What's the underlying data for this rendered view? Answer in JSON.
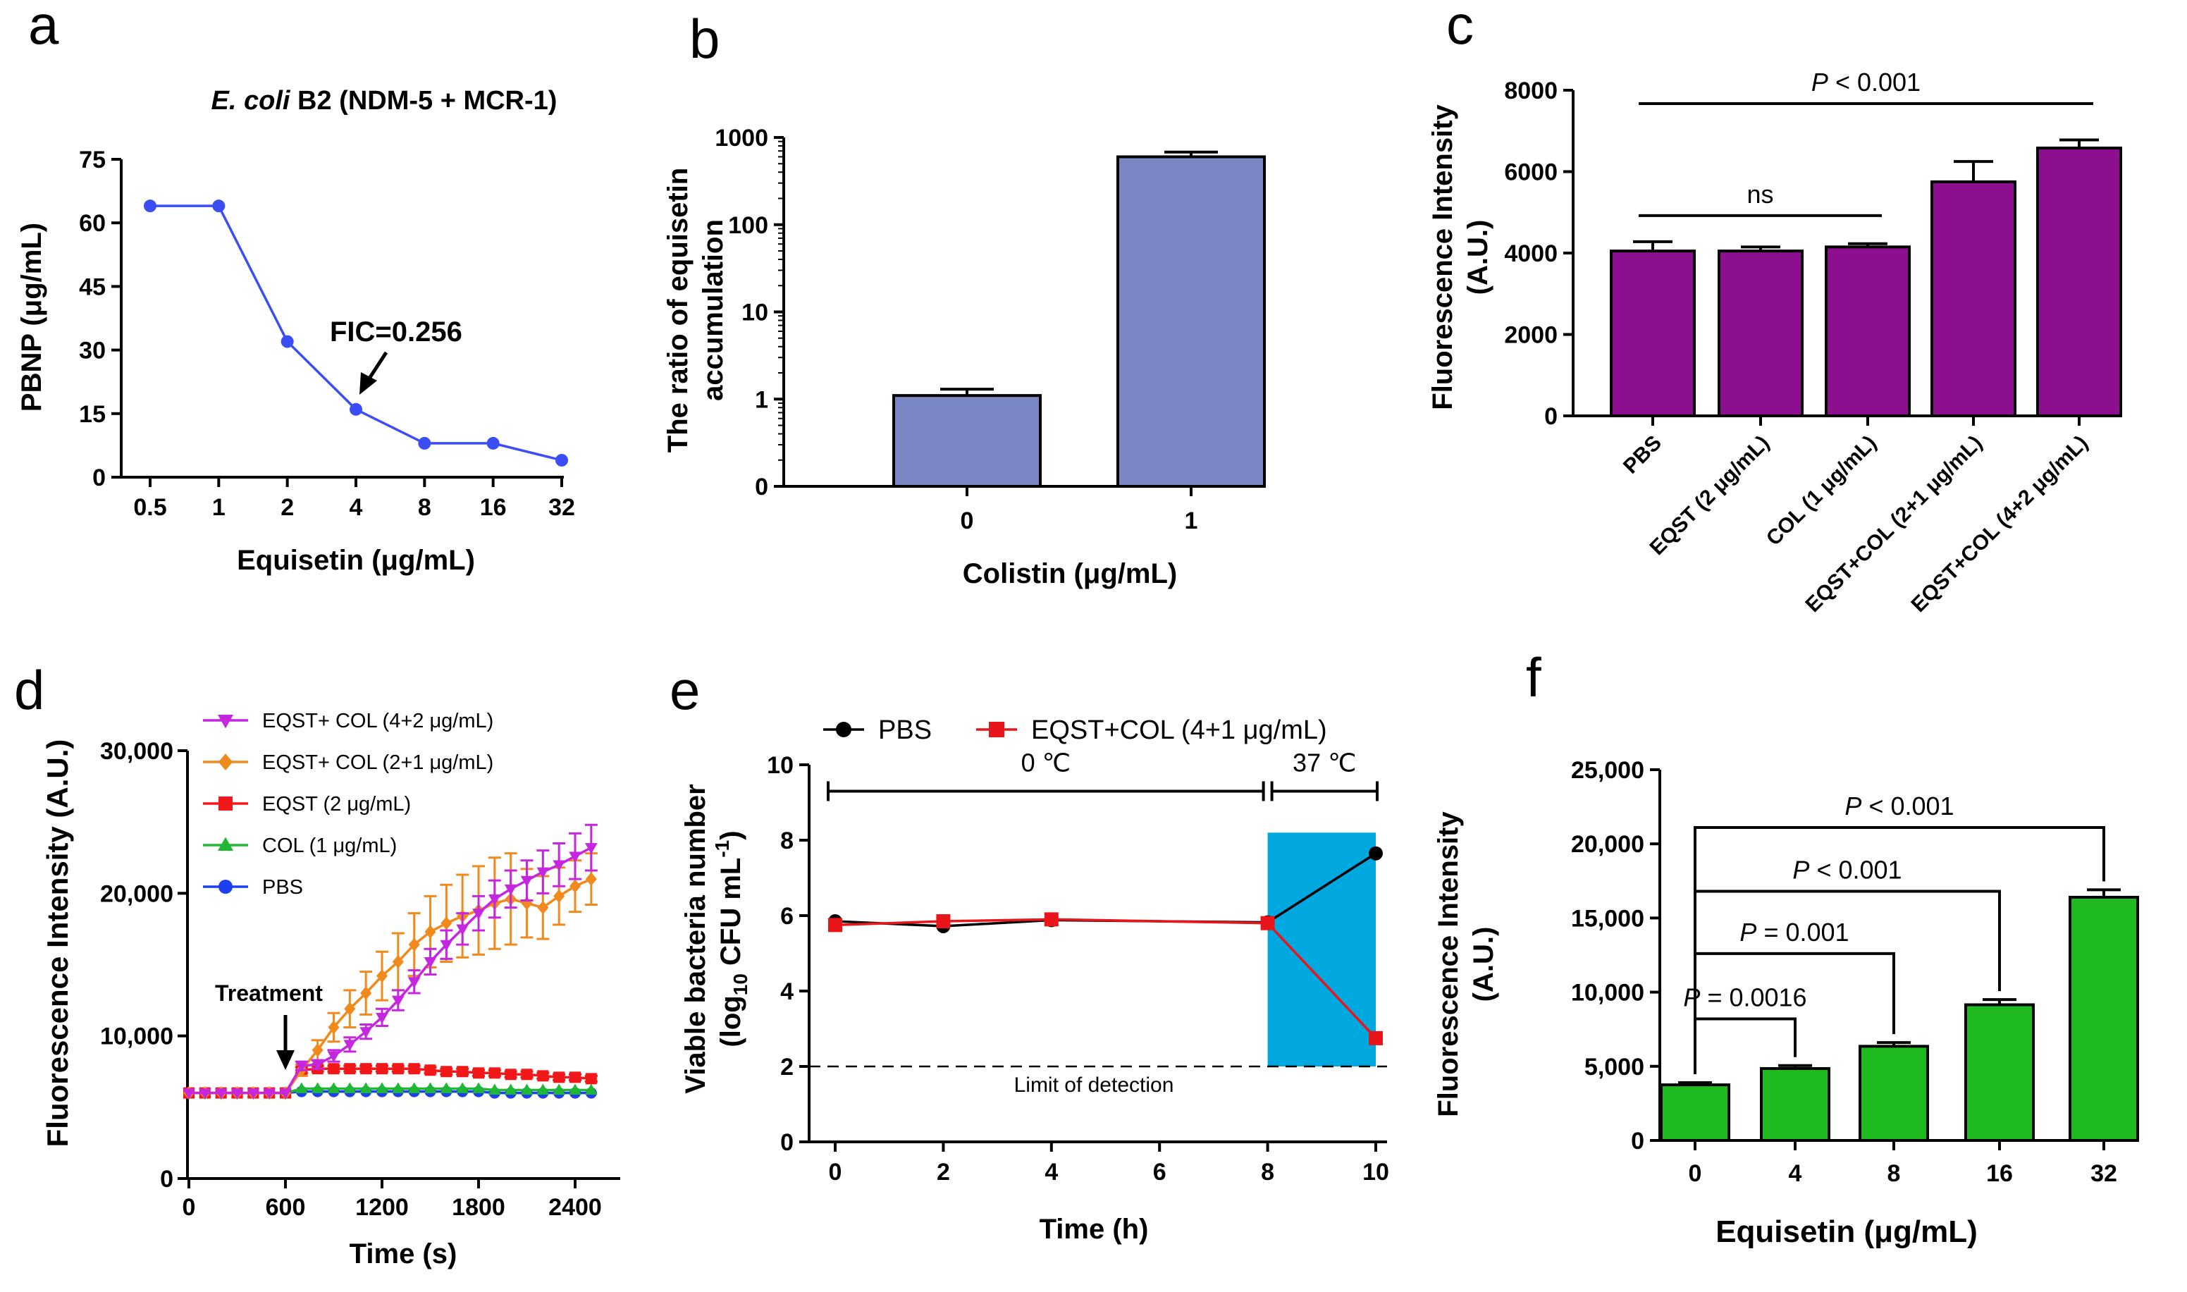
{
  "figure": {
    "panels": [
      "a",
      "b",
      "c",
      "d",
      "e",
      "f"
    ]
  },
  "chart_data": [
    {
      "id": "a",
      "type": "line",
      "title_italic": "E. coli",
      "title_rest": " B2 (NDM-5 + MCR-1)",
      "xlabel": "Equisetin (μg/mL)",
      "ylabel": "PBNP (μg/mL)",
      "categories": [
        "0.5",
        "1",
        "2",
        "4",
        "8",
        "16",
        "32"
      ],
      "values": [
        64,
        64,
        32,
        16,
        8,
        8,
        4
      ],
      "ylim": [
        0,
        75
      ],
      "yticks": [
        0,
        15,
        30,
        45,
        60,
        75
      ],
      "ytick_labels": [
        "0",
        "15",
        "30",
        "45",
        "60",
        "75"
      ],
      "annotation": "FIC=0.256",
      "annotation_target_index": 3,
      "color": "#3b4ef6"
    },
    {
      "id": "b",
      "type": "bar",
      "yscale": "log",
      "xlabel": "Colistin (μg/mL)",
      "ylabel_line1": "The ratio of equisetin",
      "ylabel_line2": "accumulation",
      "categories": [
        "0",
        "1"
      ],
      "values": [
        1.1,
        600
      ],
      "errors": [
        0.2,
        80
      ],
      "ylim": [
        0.1,
        1000
      ],
      "yticks": [
        0.1,
        1,
        10,
        100,
        1000
      ],
      "ytick_labels": [
        "0",
        "1",
        "10",
        "100",
        "1000"
      ],
      "color": "#7b86c4"
    },
    {
      "id": "c",
      "type": "bar",
      "ylabel_line1": "Fluorescence Intensity",
      "ylabel_line2": "(A.U.)",
      "categories": [
        "PBS",
        "EQST (2 μg/mL)",
        "COL (1 μg/mL)",
        "EQST+COL (2+1 μg/mL)",
        "EQST+COL (4+2 μg/mL)"
      ],
      "values": [
        4050,
        4050,
        4150,
        5750,
        6580
      ],
      "errors": [
        230,
        100,
        80,
        500,
        200
      ],
      "ylim": [
        0,
        8000
      ],
      "yticks": [
        0,
        2000,
        4000,
        6000,
        8000
      ],
      "ytick_labels": [
        "0",
        "2000",
        "4000",
        "6000",
        "8000"
      ],
      "brackets": [
        {
          "from": 0,
          "to": 2,
          "y": 4920,
          "label_italic": "",
          "label_rest": "ns"
        },
        {
          "from": 0,
          "to": 4,
          "y": 7670,
          "label_italic": "P",
          "label_rest": " < 0.001"
        }
      ],
      "color": "#8b0f8f"
    },
    {
      "id": "d",
      "type": "line",
      "xlabel": "Time (s)",
      "ylabel": "Fluorescence Intensity (A.U.)",
      "xlim": [
        0,
        2600
      ],
      "xticks": [
        0,
        600,
        1200,
        1800,
        2400
      ],
      "xtick_labels": [
        "0",
        "600",
        "1200",
        "1800",
        "2400"
      ],
      "ylim": [
        0,
        30000
      ],
      "yticks": [
        0,
        10000,
        20000,
        30000
      ],
      "ytick_labels": [
        "0",
        "10,000",
        "20,000",
        "30,000"
      ],
      "x": [
        0,
        100,
        200,
        300,
        400,
        500,
        600,
        700,
        800,
        900,
        1000,
        1100,
        1200,
        1300,
        1400,
        1500,
        1600,
        1700,
        1800,
        1900,
        2000,
        2100,
        2200,
        2300,
        2400,
        2500
      ],
      "series": [
        {
          "name": "EQST+ COL (4+2 μg/mL)",
          "color": "#c526e0",
          "marker": "tri-down",
          "values": [
            6000,
            6000,
            6000,
            6000,
            6000,
            6000,
            6000,
            7900,
            8000,
            8600,
            9400,
            10300,
            11300,
            12500,
            13800,
            15200,
            16400,
            17500,
            18600,
            19600,
            20300,
            20900,
            21500,
            22000,
            22600,
            23200
          ],
          "errors": [
            0,
            0,
            0,
            0,
            0,
            0,
            0,
            300,
            300,
            400,
            500,
            500,
            600,
            700,
            800,
            900,
            1000,
            1100,
            1200,
            1300,
            1300,
            1400,
            1500,
            1500,
            1600,
            1600
          ]
        },
        {
          "name": "EQST+ COL (2+1 μg/mL)",
          "color": "#f08a1c",
          "marker": "diamond",
          "values": [
            6000,
            6000,
            6000,
            6000,
            6000,
            6000,
            6000,
            7600,
            9000,
            10600,
            11900,
            13000,
            14200,
            15200,
            16400,
            17300,
            17900,
            18400,
            18800,
            19300,
            19600,
            19300,
            19000,
            19800,
            20500,
            21000
          ],
          "errors": [
            0,
            0,
            0,
            0,
            0,
            0,
            0,
            400,
            700,
            1000,
            1300,
            1500,
            1700,
            2000,
            2200,
            2500,
            2700,
            2900,
            3100,
            3200,
            3200,
            2400,
            2200,
            2000,
            1800,
            1800
          ]
        },
        {
          "name": "EQST (2 μg/mL)",
          "color": "#f01818",
          "marker": "square",
          "values": [
            6000,
            6000,
            6000,
            6000,
            6000,
            6000,
            6000,
            7600,
            7700,
            7700,
            7700,
            7700,
            7700,
            7700,
            7700,
            7600,
            7500,
            7500,
            7400,
            7400,
            7300,
            7300,
            7200,
            7100,
            7100,
            7000
          ],
          "errors": [
            0,
            0,
            0,
            0,
            0,
            0,
            0,
            200,
            200,
            200,
            200,
            200,
            200,
            200,
            200,
            200,
            200,
            200,
            200,
            200,
            200,
            200,
            200,
            200,
            200,
            200
          ]
        },
        {
          "name": "COL (1 μg/mL)",
          "color": "#1fb832",
          "marker": "triangle",
          "values": [
            6000,
            6000,
            6000,
            6000,
            6000,
            6000,
            6000,
            6300,
            6300,
            6300,
            6300,
            6300,
            6300,
            6300,
            6300,
            6300,
            6300,
            6300,
            6300,
            6200,
            6200,
            6200,
            6200,
            6200,
            6200,
            6200
          ],
          "errors": []
        },
        {
          "name": "PBS",
          "color": "#1e3ff0",
          "marker": "circle",
          "values": [
            6000,
            6000,
            6000,
            6000,
            6000,
            6000,
            6000,
            6100,
            6100,
            6100,
            6100,
            6100,
            6100,
            6100,
            6100,
            6100,
            6100,
            6100,
            6100,
            6000,
            6000,
            6000,
            6000,
            6000,
            6000,
            6000
          ],
          "errors": []
        }
      ],
      "annotation": "Treatment",
      "annotation_x": 600
    },
    {
      "id": "e",
      "type": "line",
      "xlabel": "Time (h)",
      "ylabel_line1": "Viable bacteria number",
      "ylabel_line2_pre": "(log",
      "ylabel_line2_sub": "10",
      "ylabel_line2_mid": " CFU mL",
      "ylabel_line2_sup": "-1",
      "ylabel_line2_post": ")",
      "xlim": [
        0,
        10
      ],
      "xticks": [
        0,
        2,
        4,
        6,
        8,
        10
      ],
      "xtick_labels": [
        "0",
        "2",
        "4",
        "6",
        "8",
        "10"
      ],
      "ylim": [
        0,
        10
      ],
      "yticks": [
        0,
        2,
        4,
        6,
        8,
        10
      ],
      "ytick_labels": [
        "0",
        "2",
        "4",
        "6",
        "8",
        "10"
      ],
      "series": [
        {
          "name": "PBS",
          "color": "#000000",
          "marker": "circle",
          "x": [
            0,
            2,
            4,
            8,
            10
          ],
          "values": [
            5.85,
            5.72,
            5.88,
            5.82,
            7.65
          ]
        },
        {
          "name": "EQST+COL (4+1 μg/mL)",
          "color": "#e8151b",
          "marker": "square",
          "x": [
            0,
            2,
            4,
            8,
            10
          ],
          "values": [
            5.75,
            5.85,
            5.9,
            5.8,
            2.75
          ]
        }
      ],
      "limit_line": 2,
      "limit_label": "Limit of detection",
      "region_labels": [
        "0 ℃",
        "37 ℃"
      ],
      "highlight": {
        "from": 8,
        "to": 10,
        "ymax": 8.2,
        "color": "#00a8e0"
      }
    },
    {
      "id": "f",
      "type": "bar",
      "xlabel": "Equisetin (μg/mL)",
      "ylabel_line1": "Fluorescence Intensity",
      "ylabel_line2": "(A.U.)",
      "categories": [
        "0",
        "4",
        "8",
        "16",
        "32"
      ],
      "values": [
        3750,
        4850,
        6350,
        9150,
        16400
      ],
      "errors": [
        150,
        200,
        250,
        350,
        500
      ],
      "ylim": [
        0,
        25000
      ],
      "yticks": [
        0,
        5000,
        10000,
        15000,
        20000,
        25000
      ],
      "ytick_labels": [
        "0",
        "5,000",
        "10,000",
        "15,000",
        "20,000",
        "25,000"
      ],
      "brackets": [
        {
          "to": 1,
          "y": 8200,
          "label_italic": "P",
          "label_rest": " = 0.0016"
        },
        {
          "to": 2,
          "y": 12600,
          "label_italic": "P",
          "label_rest": " = 0.001"
        },
        {
          "to": 3,
          "y": 16800,
          "label_italic": "P",
          "label_rest": " < 0.001"
        },
        {
          "to": 4,
          "y": 21100,
          "label_italic": "P",
          "label_rest": " < 0.001"
        }
      ],
      "color": "#1fba1f"
    }
  ]
}
